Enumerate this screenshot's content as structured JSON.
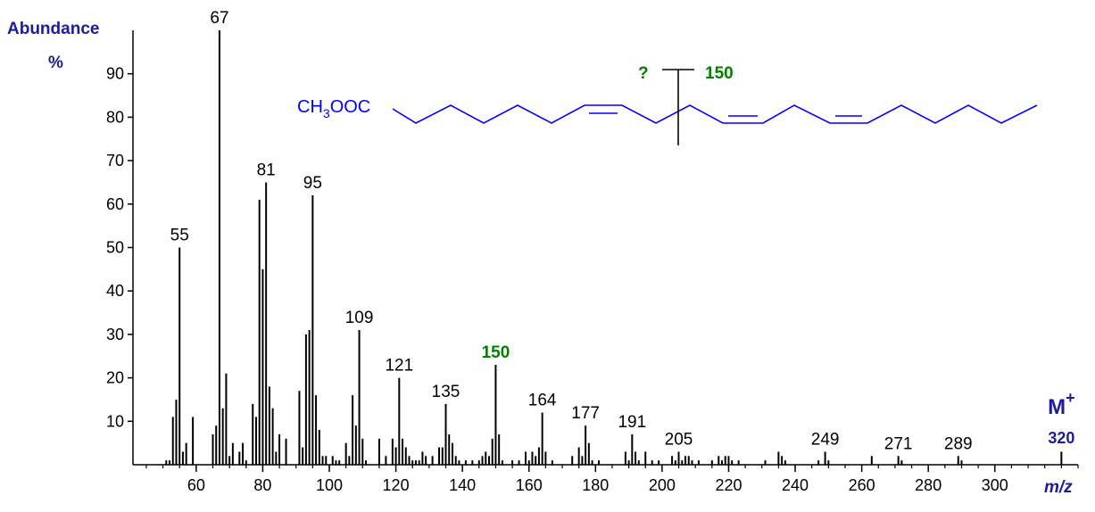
{
  "chart_data": {
    "type": "bar",
    "y_label": "Abundance",
    "y_unit": "%",
    "x_label": "m/z",
    "x": [
      51,
      52,
      53,
      54,
      55,
      56,
      57,
      59,
      65,
      66,
      67,
      68,
      69,
      70,
      71,
      73,
      74,
      75,
      77,
      78,
      79,
      80,
      81,
      82,
      83,
      84,
      85,
      87,
      91,
      92,
      93,
      94,
      95,
      96,
      97,
      98,
      99,
      101,
      102,
      103,
      105,
      106,
      107,
      108,
      109,
      110,
      111,
      115,
      117,
      119,
      120,
      121,
      122,
      123,
      124,
      125,
      126,
      127,
      128,
      129,
      131,
      133,
      134,
      135,
      136,
      137,
      138,
      139,
      141,
      143,
      145,
      146,
      147,
      148,
      149,
      150,
      151,
      152,
      155,
      157,
      159,
      160,
      161,
      162,
      163,
      164,
      165,
      167,
      173,
      175,
      176,
      177,
      178,
      179,
      181,
      189,
      190,
      191,
      192,
      193,
      195,
      197,
      199,
      203,
      204,
      205,
      206,
      207,
      208,
      209,
      211,
      215,
      217,
      218,
      219,
      220,
      221,
      223,
      231,
      235,
      236,
      237,
      247,
      249,
      250,
      263,
      271,
      272,
      289,
      290,
      320
    ],
    "values": [
      1,
      1,
      11,
      15,
      50,
      3,
      5,
      11,
      7,
      9,
      100,
      13,
      21,
      2,
      5,
      3,
      5,
      1,
      14,
      11,
      61,
      45,
      65,
      18,
      13,
      3,
      7,
      6,
      17,
      4,
      30,
      31,
      62,
      16,
      8,
      2,
      2,
      2,
      1,
      1,
      5,
      2,
      16,
      9,
      31,
      6,
      1,
      6,
      2,
      6,
      4,
      20,
      6,
      4,
      2,
      1,
      1,
      1,
      3,
      2,
      2,
      4,
      4,
      14,
      7,
      5,
      2,
      1,
      1,
      1,
      1,
      2,
      3,
      2,
      6,
      23,
      7,
      1,
      1,
      1,
      3,
      1,
      3,
      2,
      4,
      12,
      3,
      1,
      2,
      4,
      2,
      9,
      5,
      1,
      1,
      3,
      1,
      7,
      3,
      1,
      3,
      1,
      1,
      2,
      1,
      3,
      1,
      2,
      2,
      1,
      1,
      1,
      2,
      1,
      2,
      2,
      1,
      1,
      1,
      3,
      2,
      1,
      1,
      3,
      1,
      2,
      2,
      1,
      2,
      1,
      3
    ],
    "color": "#000000",
    "peak_labels": [
      55,
      67,
      81,
      95,
      109,
      121,
      135,
      150,
      164,
      177,
      191,
      205,
      249,
      271,
      289
    ],
    "highlight": 150,
    "highlight_color": "#008000",
    "molecular_ion": {
      "label": "M",
      "charge": "+",
      "mz": 320,
      "color": "#1c1c9c"
    },
    "xlim": [
      41,
      325
    ],
    "ylim": [
      0,
      100
    ],
    "xticks": [
      60,
      80,
      100,
      120,
      140,
      160,
      180,
      200,
      220,
      240,
      260,
      280,
      300
    ],
    "yticks": [
      10,
      20,
      30,
      40,
      50,
      60,
      70,
      80,
      90
    ],
    "minor_tick_step": 5
  },
  "structure": {
    "formula": [
      "CH",
      "3",
      "OOC"
    ],
    "cleavage_unknown": "?",
    "cleavage_mass": "150"
  }
}
